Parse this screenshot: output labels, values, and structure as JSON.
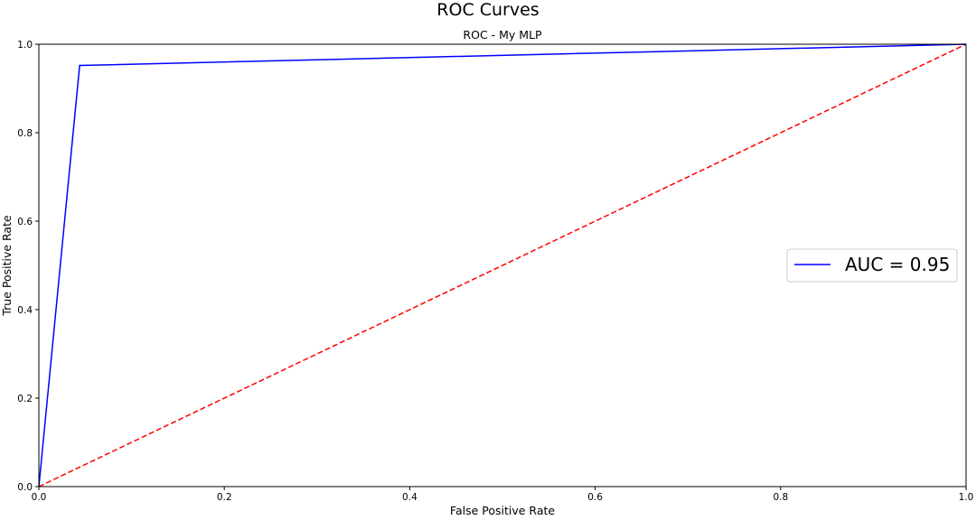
{
  "figure": {
    "title": "ROC Curves"
  },
  "chart_data": {
    "type": "line",
    "title": "ROC - My MLP",
    "xlabel": "False Positive Rate",
    "ylabel": "True Positive Rate",
    "xlim": [
      0.0,
      1.0
    ],
    "ylim": [
      0.0,
      1.0
    ],
    "x_ticks": [
      "0.0",
      "0.2",
      "0.4",
      "0.6",
      "0.8",
      "1.0"
    ],
    "y_ticks": [
      "0.0",
      "0.2",
      "0.4",
      "0.6",
      "0.8",
      "1.0"
    ],
    "grid": false,
    "legend_location": "center-right",
    "series": [
      {
        "name": "AUC = 0.95",
        "color": "#0000ff",
        "linestyle": "solid",
        "x": [
          0.0,
          0.044,
          1.0
        ],
        "y": [
          0.0,
          0.952,
          1.0
        ]
      },
      {
        "color": "#ff0000",
        "linestyle": "dashed",
        "x": [
          0.0,
          1.0
        ],
        "y": [
          0.0,
          1.0
        ]
      }
    ]
  }
}
